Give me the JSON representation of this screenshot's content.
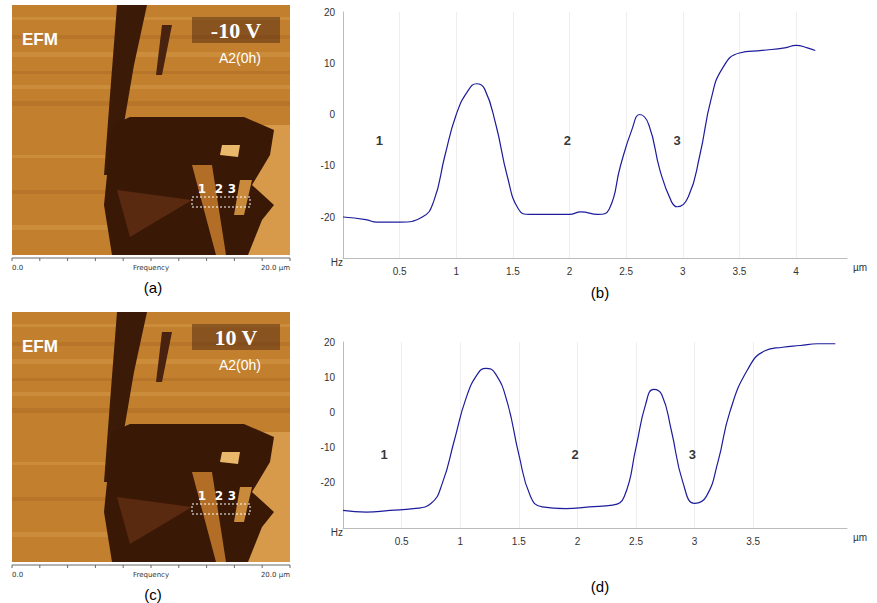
{
  "chart_data": [
    {
      "type": "line",
      "title": "(b)",
      "color": "#1c1c9c",
      "grid": true,
      "x_label": "µm",
      "y_label": "Hz",
      "x": [
        0,
        0.2,
        0.3,
        0.5,
        0.7,
        0.8,
        0.9,
        1.0,
        1.1,
        1.18,
        1.25,
        1.35,
        1.45,
        1.55,
        1.65,
        1.8,
        2.0,
        2.1,
        2.25,
        2.35,
        2.45,
        2.55,
        2.62,
        2.7,
        2.8,
        2.9,
        2.95,
        3.05,
        3.15,
        3.25,
        3.35,
        3.5,
        3.7,
        3.9,
        4.0,
        4.1,
        4.17
      ],
      "values": [
        -20,
        -20.5,
        -21,
        -21,
        -20,
        -17,
        -8,
        0,
        4.5,
        6,
        5,
        -2,
        -12,
        -18.5,
        -19.5,
        -19.5,
        -19.5,
        -19,
        -19.5,
        -18.5,
        -10,
        -3,
        0,
        -2,
        -11,
        -17,
        -18,
        -16,
        -8,
        3,
        9,
        12,
        12.5,
        13,
        13.5,
        13,
        12.5
      ],
      "xlim": [
        0,
        4.45
      ],
      "ylim": [
        -28,
        20
      ],
      "xticks": [
        0.5,
        1,
        1.5,
        2,
        2.5,
        3,
        3.5,
        4
      ],
      "yticks": [
        -20,
        -10,
        0,
        10,
        20
      ],
      "annotations": [
        {
          "text": "1",
          "x": 0.32,
          "y": -5
        },
        {
          "text": "2",
          "x": 1.98,
          "y": -5
        },
        {
          "text": "3",
          "x": 2.95,
          "y": -5
        }
      ]
    },
    {
      "type": "line",
      "title": "(d)",
      "color": "#1c1c9c",
      "grid": true,
      "x_label": "µm",
      "y_label": "Hz",
      "x": [
        0,
        0.2,
        0.4,
        0.6,
        0.75,
        0.85,
        0.95,
        1.05,
        1.15,
        1.22,
        1.3,
        1.4,
        1.5,
        1.6,
        1.7,
        1.9,
        2.1,
        2.3,
        2.4,
        2.5,
        2.58,
        2.65,
        2.72,
        2.8,
        2.9,
        3.0,
        3.1,
        3.2,
        3.3,
        3.45,
        3.6,
        3.75,
        3.9,
        4.05,
        4.2
      ],
      "values": [
        -28,
        -28.5,
        -28,
        -27.5,
        -26,
        -20,
        -8,
        4,
        11,
        12.5,
        11,
        3,
        -12,
        -24,
        -27,
        -27.5,
        -27,
        -26.5,
        -24,
        -10,
        2,
        6.5,
        5,
        -5,
        -20,
        -26,
        -24,
        -14,
        0,
        12,
        17.5,
        18.5,
        19,
        19.5,
        19.5
      ],
      "xlim": [
        0,
        4.3
      ],
      "ylim": [
        -33,
        20
      ],
      "xticks": [
        0.5,
        1,
        1.5,
        2,
        2.5,
        3,
        3.5
      ],
      "yticks": [
        -20,
        -10,
        0,
        10,
        20
      ],
      "annotations": [
        {
          "text": "1",
          "x": 0.35,
          "y": -12
        },
        {
          "text": "2",
          "x": 1.98,
          "y": -12
        },
        {
          "text": "3",
          "x": 2.98,
          "y": -12
        }
      ]
    }
  ],
  "images": [
    {
      "label": "(a)",
      "title": "EFM",
      "voltage": "-10 V",
      "sample": "A2(0h)",
      "markers": [
        "1",
        "2",
        "3"
      ],
      "scale_start": "0.0",
      "scale_name": "Frequency",
      "scale_end": "20.0 µm"
    },
    {
      "label": "(c)",
      "title": "EFM",
      "voltage": "10 V",
      "sample": "A2(0h)",
      "markers": [
        "1",
        "2",
        "3"
      ],
      "scale_start": "0.0",
      "scale_name": "Frequency",
      "scale_end": "20.0 µm"
    }
  ]
}
